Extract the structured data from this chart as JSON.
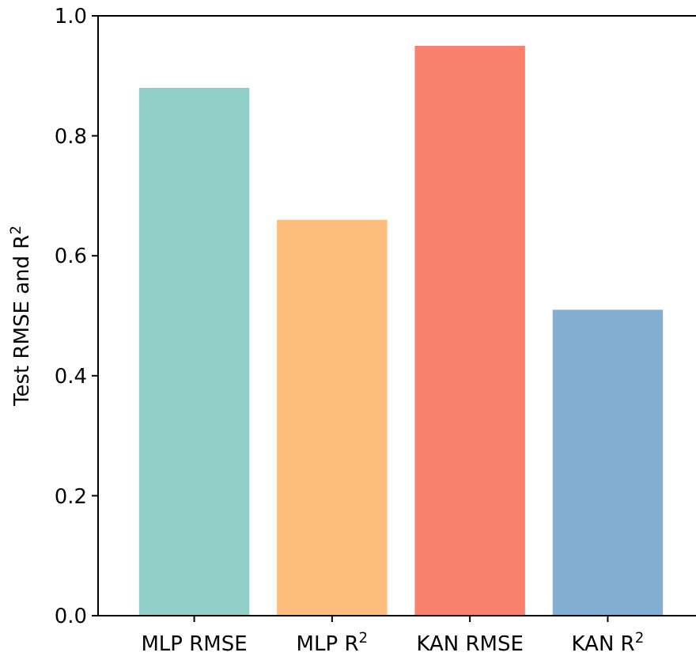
{
  "chart_data": {
    "type": "bar",
    "ylabel": "Test RMSE and R$^{2}$",
    "categories": [
      "MLP RMSE",
      "MLP R$^{2}$",
      "KAN RMSE",
      "KAN R$^{2}$"
    ],
    "values": [
      0.88,
      0.66,
      0.95,
      0.51
    ],
    "colors": [
      "#92cfc9",
      "#fdbd7c",
      "#fa806e",
      "#82aed2"
    ],
    "ylim": [
      0,
      1
    ],
    "yticks": [
      {
        "value": 0,
        "label": "0.0"
      },
      {
        "value": 0.2,
        "label": "0.2"
      },
      {
        "value": 0.4,
        "label": "0.4"
      },
      {
        "value": 0.6,
        "label": "0.6"
      },
      {
        "value": 0.8,
        "label": "0.8"
      },
      {
        "value": 1,
        "label": "1.0"
      }
    ],
    "grid": false
  }
}
